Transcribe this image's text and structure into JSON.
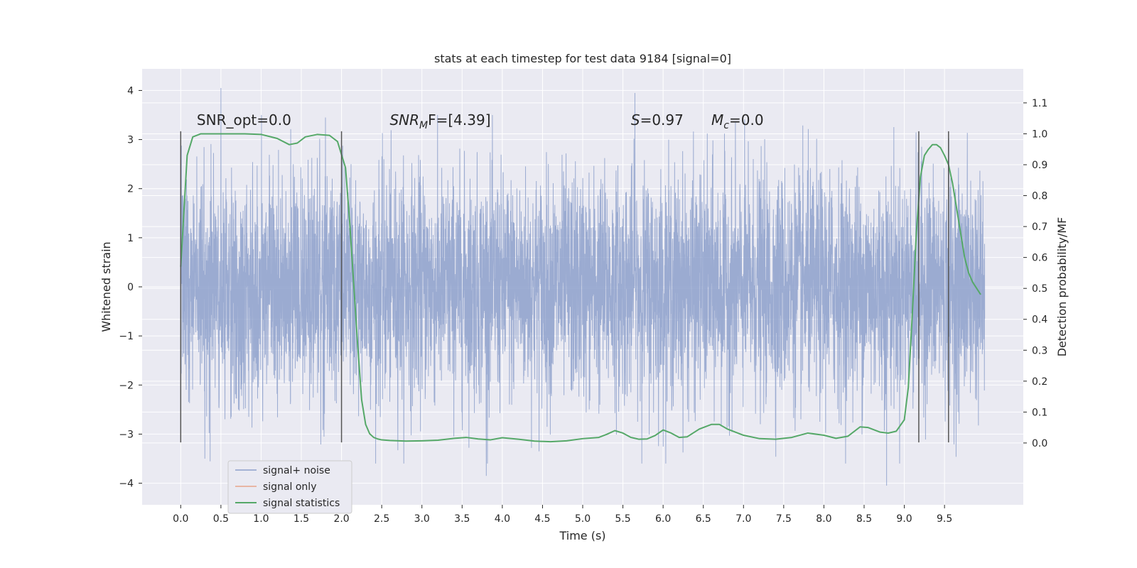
{
  "chart_data": {
    "type": "line",
    "title": "stats at each timestep for test data 9184 [signal=0]",
    "xlabel": "Time (s)",
    "ylabel": "Whitened strain",
    "y2label": "Detection probability/MF",
    "xlim": [
      -0.48,
      10.48
    ],
    "ylim": [
      -4.44,
      4.44
    ],
    "y2lim": [
      -0.2,
      1.21
    ],
    "xticks": [
      0.0,
      0.5,
      1.0,
      1.5,
      2.0,
      2.5,
      3.0,
      3.5,
      4.0,
      4.5,
      5.0,
      5.5,
      6.0,
      6.5,
      7.0,
      7.5,
      8.0,
      8.5,
      9.0,
      9.5
    ],
    "yticks": [
      -4,
      -3,
      -2,
      -1,
      0,
      1,
      2,
      3,
      4
    ],
    "y2ticks": [
      0.0,
      0.1,
      0.2,
      0.3,
      0.4,
      0.5,
      0.6,
      0.7,
      0.8,
      0.9,
      1.0,
      1.1
    ],
    "grid": true,
    "legend_position": "lower-left",
    "colors": {
      "noise": "#8da0cb",
      "signal": "#e8a48a",
      "stat": "#55a868",
      "vline": "#555555",
      "plot_bg": "#eaeaf2",
      "grid": "#ffffff"
    },
    "annotations": [
      {
        "x": 0.2,
        "y": 3.3,
        "prefix": "SNR_opt=0.0",
        "sub": "",
        "suffix": ""
      },
      {
        "x": 2.6,
        "y": 3.3,
        "prefix": "SNR",
        "sub": "M",
        "suffix": "F=[4.39]"
      },
      {
        "x": 5.6,
        "y": 3.3,
        "prefix": "S",
        "sub": "",
        "suffix": "=0.97"
      },
      {
        "x": 6.6,
        "y": 3.3,
        "prefix": "M",
        "sub": "c",
        "suffix": "=0.0"
      }
    ],
    "vlines": [
      0.0,
      2.0,
      9.18,
      9.55
    ],
    "vline_ylim": [
      -3.17,
      3.17
    ],
    "series": [
      {
        "name": "signal+ noise",
        "axis": "left",
        "x_range": [
          0.0,
          10.0
        ],
        "amplitude_peaks": [
          [
            0.5,
            4.05
          ],
          [
            1.8,
            3.45
          ],
          [
            5.65,
            3.95
          ],
          [
            8.78,
            -4.05
          ],
          [
            3.8,
            -3.85
          ],
          [
            0.3,
            -3.5
          ]
        ]
      },
      {
        "name": "signal only",
        "axis": "left",
        "values": []
      },
      {
        "name": "signal statistics",
        "axis": "right",
        "x": [
          0.0,
          0.08,
          0.15,
          0.25,
          0.4,
          0.6,
          0.8,
          1.0,
          1.2,
          1.35,
          1.45,
          1.55,
          1.7,
          1.85,
          1.95,
          2.05,
          2.1,
          2.15,
          2.2,
          2.25,
          2.3,
          2.35,
          2.4,
          2.45,
          2.5,
          2.6,
          2.8,
          3.0,
          3.2,
          3.4,
          3.55,
          3.7,
          3.85,
          4.0,
          4.2,
          4.4,
          4.6,
          4.8,
          5.0,
          5.2,
          5.3,
          5.4,
          5.5,
          5.6,
          5.7,
          5.8,
          5.9,
          6.0,
          6.1,
          6.2,
          6.3,
          6.45,
          6.6,
          6.7,
          6.8,
          7.0,
          7.2,
          7.4,
          7.6,
          7.8,
          8.0,
          8.15,
          8.3,
          8.45,
          8.55,
          8.7,
          8.8,
          8.9,
          9.0,
          9.05,
          9.1,
          9.15,
          9.2,
          9.25,
          9.3,
          9.35,
          9.4,
          9.45,
          9.5,
          9.55,
          9.6,
          9.65,
          9.7,
          9.75,
          9.8,
          9.85,
          9.9,
          9.95
        ],
        "values": [
          0.57,
          0.93,
          0.99,
          1.0,
          1.0,
          1.0,
          1.0,
          0.998,
          0.985,
          0.965,
          0.97,
          0.99,
          0.998,
          0.995,
          0.975,
          0.89,
          0.72,
          0.52,
          0.32,
          0.14,
          0.06,
          0.03,
          0.018,
          0.013,
          0.01,
          0.008,
          0.006,
          0.007,
          0.009,
          0.015,
          0.018,
          0.013,
          0.01,
          0.017,
          0.012,
          0.006,
          0.004,
          0.007,
          0.014,
          0.018,
          0.028,
          0.04,
          0.032,
          0.018,
          0.012,
          0.013,
          0.024,
          0.042,
          0.032,
          0.018,
          0.02,
          0.045,
          0.06,
          0.06,
          0.045,
          0.025,
          0.014,
          0.012,
          0.018,
          0.032,
          0.025,
          0.015,
          0.022,
          0.052,
          0.05,
          0.035,
          0.032,
          0.038,
          0.075,
          0.18,
          0.42,
          0.68,
          0.86,
          0.93,
          0.95,
          0.965,
          0.965,
          0.955,
          0.93,
          0.9,
          0.84,
          0.76,
          0.68,
          0.6,
          0.55,
          0.52,
          0.5,
          0.48
        ]
      }
    ]
  }
}
